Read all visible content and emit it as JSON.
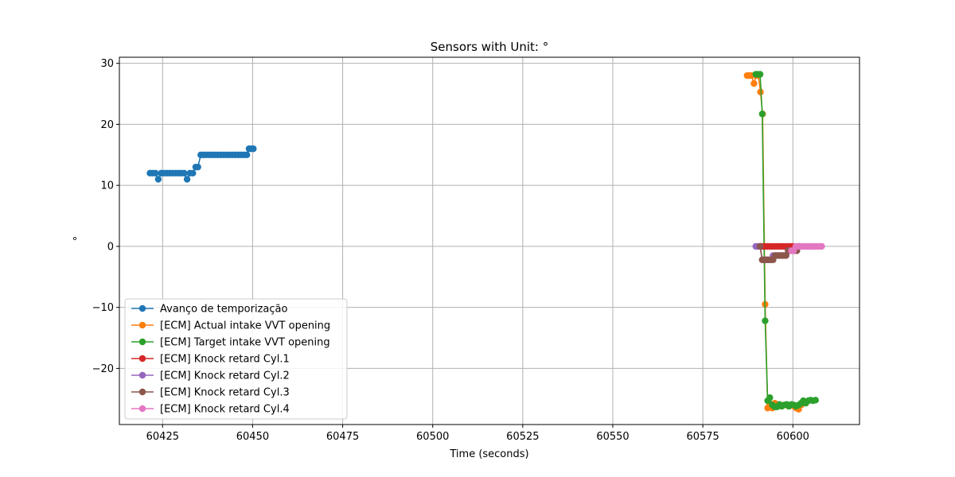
{
  "chart_data": {
    "type": "line",
    "title": "Sensors with Unit: °",
    "xlabel": "Time (seconds)",
    "ylabel": "°",
    "xlim": [
      60413,
      60618.5
    ],
    "ylim": [
      -29.2,
      31.0
    ],
    "xticks": [
      60425,
      60450,
      60475,
      60500,
      60525,
      60550,
      60575,
      60600
    ],
    "yticks": [
      -20,
      -10,
      0,
      10,
      20,
      30
    ],
    "grid": true,
    "legend_position": "lower-left",
    "series": [
      {
        "name": "Avanço de temporização",
        "color": "#1f77b4",
        "points": [
          [
            60421.5,
            12
          ],
          [
            60422.2,
            12
          ],
          [
            60423.0,
            12
          ],
          [
            60423.8,
            11
          ],
          [
            60424.6,
            12
          ],
          [
            60425.4,
            12
          ],
          [
            60426.2,
            12
          ],
          [
            60427.0,
            12
          ],
          [
            60427.8,
            12
          ],
          [
            60428.6,
            12
          ],
          [
            60429.4,
            12
          ],
          [
            60430.2,
            12
          ],
          [
            60431.0,
            12
          ],
          [
            60431.8,
            11
          ],
          [
            60432.6,
            12
          ],
          [
            60433.4,
            12
          ],
          [
            60434.2,
            13
          ],
          [
            60434.8,
            13
          ],
          [
            60435.6,
            15
          ],
          [
            60436.4,
            15
          ],
          [
            60437.2,
            15
          ],
          [
            60438.0,
            15
          ],
          [
            60438.8,
            15
          ],
          [
            60439.6,
            15
          ],
          [
            60440.4,
            15
          ],
          [
            60441.2,
            15
          ],
          [
            60442.0,
            15
          ],
          [
            60442.8,
            15
          ],
          [
            60443.6,
            15
          ],
          [
            60444.4,
            15
          ],
          [
            60445.2,
            15
          ],
          [
            60446.0,
            15
          ],
          [
            60446.8,
            15
          ],
          [
            60447.6,
            15
          ],
          [
            60448.4,
            15
          ],
          [
            60449.0,
            16
          ],
          [
            60449.6,
            16
          ],
          [
            60450.2,
            16
          ]
        ]
      },
      {
        "name": "[ECM] Actual intake VVT opening",
        "color": "#ff7f0e",
        "points": [
          [
            60587.3,
            28
          ],
          [
            60587.9,
            28
          ],
          [
            60588.5,
            28
          ],
          [
            60589.2,
            26.7
          ],
          [
            60589.8,
            28
          ],
          [
            60590.4,
            28
          ],
          [
            60591.0,
            25.3
          ],
          [
            60591.6,
            21.7
          ],
          [
            60592.3,
            -9.5
          ],
          [
            60593.0,
            -26.5
          ],
          [
            60593.6,
            -26
          ],
          [
            60594.3,
            -26.5
          ],
          [
            60595.0,
            -25.7
          ],
          [
            60595.6,
            -26
          ],
          [
            60596.3,
            -26
          ],
          [
            60596.9,
            -26.2
          ],
          [
            60597.6,
            -26
          ],
          [
            60598.3,
            -26
          ],
          [
            60598.9,
            -26.2
          ],
          [
            60599.6,
            -26
          ],
          [
            60600.3,
            -26.2
          ],
          [
            60600.9,
            -26.5
          ],
          [
            60601.6,
            -26.7
          ],
          [
            60602.3,
            -26
          ]
        ]
      },
      {
        "name": "[ECM] Target intake VVT opening",
        "color": "#2ca02c",
        "points": [
          [
            60589.7,
            28.2
          ],
          [
            60590.3,
            28.2
          ],
          [
            60590.9,
            28.2
          ],
          [
            60591.5,
            21.7
          ],
          [
            60592.3,
            -12.2
          ],
          [
            60593.0,
            -25.3
          ],
          [
            60593.6,
            -24.8
          ],
          [
            60594.3,
            -26
          ],
          [
            60595.0,
            -26.3
          ],
          [
            60595.6,
            -26.3
          ],
          [
            60596.3,
            -25.9
          ],
          [
            60596.9,
            -26.2
          ],
          [
            60597.6,
            -26
          ],
          [
            60598.3,
            -25.9
          ],
          [
            60598.9,
            -26.2
          ],
          [
            60599.6,
            -25.9
          ],
          [
            60600.3,
            -26
          ],
          [
            60600.9,
            -26.2
          ],
          [
            60601.6,
            -26
          ],
          [
            60602.3,
            -25.7
          ],
          [
            60602.9,
            -25.3
          ],
          [
            60603.6,
            -25.7
          ],
          [
            60604.3,
            -25.3
          ],
          [
            60604.9,
            -25.2
          ],
          [
            60605.6,
            -25.3
          ],
          [
            60606.3,
            -25.2
          ]
        ]
      },
      {
        "name": "[ECM] Knock retard Cyl.1",
        "color": "#d62728",
        "points": [
          [
            60591.0,
            0
          ],
          [
            60591.6,
            0
          ],
          [
            60592.3,
            0
          ],
          [
            60592.9,
            0
          ],
          [
            60593.6,
            0
          ],
          [
            60594.2,
            0
          ],
          [
            60594.9,
            0
          ],
          [
            60595.5,
            0
          ],
          [
            60596.2,
            0
          ],
          [
            60596.8,
            0
          ],
          [
            60597.5,
            0
          ],
          [
            60598.1,
            0
          ],
          [
            60598.8,
            0
          ],
          [
            60599.4,
            0
          ],
          [
            60600.1,
            0
          ]
        ]
      },
      {
        "name": "[ECM] Knock retard Cyl.2",
        "color": "#9467bd",
        "points": [
          [
            60589.7,
            0
          ],
          [
            60590.3,
            0
          ],
          [
            60590.9,
            0
          ],
          [
            60591.5,
            -2.2
          ],
          [
            60592.1,
            -2.2
          ],
          [
            60592.7,
            -2.2
          ],
          [
            60593.3,
            -2.2
          ],
          [
            60593.9,
            -2.2
          ],
          [
            60594.5,
            -1.5
          ],
          [
            60595.1,
            -1.5
          ],
          [
            60595.7,
            -1.5
          ],
          [
            60596.3,
            -1.5
          ],
          [
            60596.9,
            -1.5
          ],
          [
            60597.5,
            -1.5
          ],
          [
            60598.1,
            -1.5
          ],
          [
            60598.7,
            -0.7
          ],
          [
            60599.3,
            -0.7
          ],
          [
            60599.9,
            -0.7
          ],
          [
            60600.5,
            -0.7
          ],
          [
            60601.1,
            -0.7
          ],
          [
            60601.7,
            0
          ]
        ]
      },
      {
        "name": "[ECM] Knock retard Cyl.3",
        "color": "#8c564b",
        "points": [
          [
            60590.9,
            0
          ],
          [
            60591.5,
            -2.2
          ],
          [
            60592.1,
            -2.2
          ],
          [
            60592.7,
            -2.2
          ],
          [
            60593.3,
            -2.2
          ],
          [
            60593.9,
            -2.2
          ],
          [
            60594.5,
            -2.2
          ],
          [
            60595.1,
            -1.5
          ],
          [
            60595.7,
            -1.5
          ],
          [
            60596.3,
            -1.5
          ],
          [
            60596.9,
            -1.5
          ],
          [
            60597.5,
            -1.5
          ],
          [
            60598.1,
            -1.5
          ],
          [
            60598.7,
            -0.7
          ],
          [
            60599.3,
            -0.7
          ],
          [
            60599.9,
            -0.7
          ],
          [
            60600.5,
            -0.7
          ],
          [
            60601.1,
            -0.7
          ],
          [
            60601.7,
            0
          ]
        ]
      },
      {
        "name": "[ECM] Knock retard Cyl.4",
        "color": "#e377c2",
        "points": [
          [
            60599.6,
            -0.7
          ],
          [
            60600.2,
            -0.7
          ],
          [
            60600.8,
            0
          ],
          [
            60601.4,
            0
          ],
          [
            60602.0,
            0
          ],
          [
            60602.6,
            0
          ],
          [
            60603.2,
            0
          ],
          [
            60603.8,
            0
          ],
          [
            60604.4,
            0
          ],
          [
            60605.0,
            0
          ],
          [
            60605.6,
            0
          ],
          [
            60606.2,
            0
          ],
          [
            60606.8,
            0
          ],
          [
            60607.4,
            0
          ],
          [
            60608.0,
            0
          ]
        ]
      }
    ]
  }
}
